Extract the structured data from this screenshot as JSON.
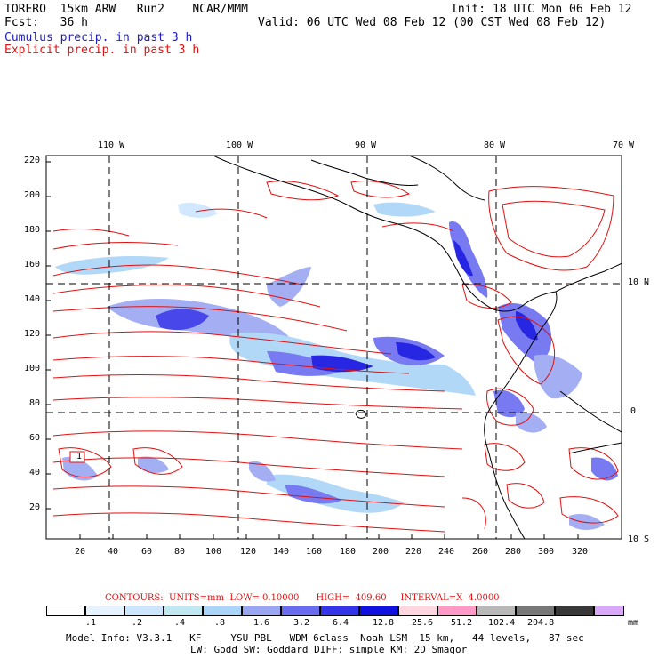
{
  "header": {
    "left1": "TORERO  15km ARW   Run2    NCAR/MMM",
    "left2": "Fcst:   36 h",
    "right1": "Init: 18 UTC Mon 06 Feb 12",
    "right2": "Valid: 06 UTC Wed 08 Feb 12 (00 CST Wed 08 Feb 12)",
    "legend_cumulus": "Cumulus precip. in past 3 h",
    "legend_explicit": "Explicit precip. in past 3 h"
  },
  "axes": {
    "lon_labels": [
      "110 W",
      "100 W",
      "90 W",
      "80 W",
      "70 W"
    ],
    "lat_labels": [
      "10 N",
      "0",
      "10 S"
    ],
    "y_ticks": [
      "220",
      "200",
      "180",
      "160",
      "140",
      "120",
      "100",
      "80",
      "60",
      "40",
      "20"
    ],
    "x_ticks": [
      "20",
      "40",
      "60",
      "80",
      "100",
      "120",
      "140",
      "160",
      "180",
      "200",
      "220",
      "240",
      "260",
      "280",
      "300",
      "320"
    ],
    "grid_box_label": "1"
  },
  "contours": {
    "text": "CONTOURS:  UNITS=mm  LOW= 0.10000      HIGH=  409.60     INTERVAL=X  4.0000"
  },
  "colorbar": {
    "labels": [
      ".1",
      ".2",
      ".4",
      ".8",
      "1.6",
      "3.2",
      "6.4",
      "12.8",
      "25.6",
      "51.2",
      "102.4",
      "204.8"
    ],
    "unit": "mm",
    "colors": [
      "#ffffff",
      "#e6f3ff",
      "#cde6ff",
      "#c0e8f0",
      "#aad4f8",
      "#9aa6f2",
      "#6a6cf0",
      "#3434e8",
      "#1010e0",
      "#ffd6e0",
      "#ff9ac6",
      "#b8b8b8",
      "#787878",
      "#383838",
      "#d9a8f8"
    ]
  },
  "footer": {
    "line1": "Model Info: V3.3.1   KF     YSU PBL   WDM 6class  Noah LSM  15 km,   44 levels,   87 sec",
    "line2": "LW: Godd SW: Goddard DIFF: simple KM: 2D Smagor"
  }
}
